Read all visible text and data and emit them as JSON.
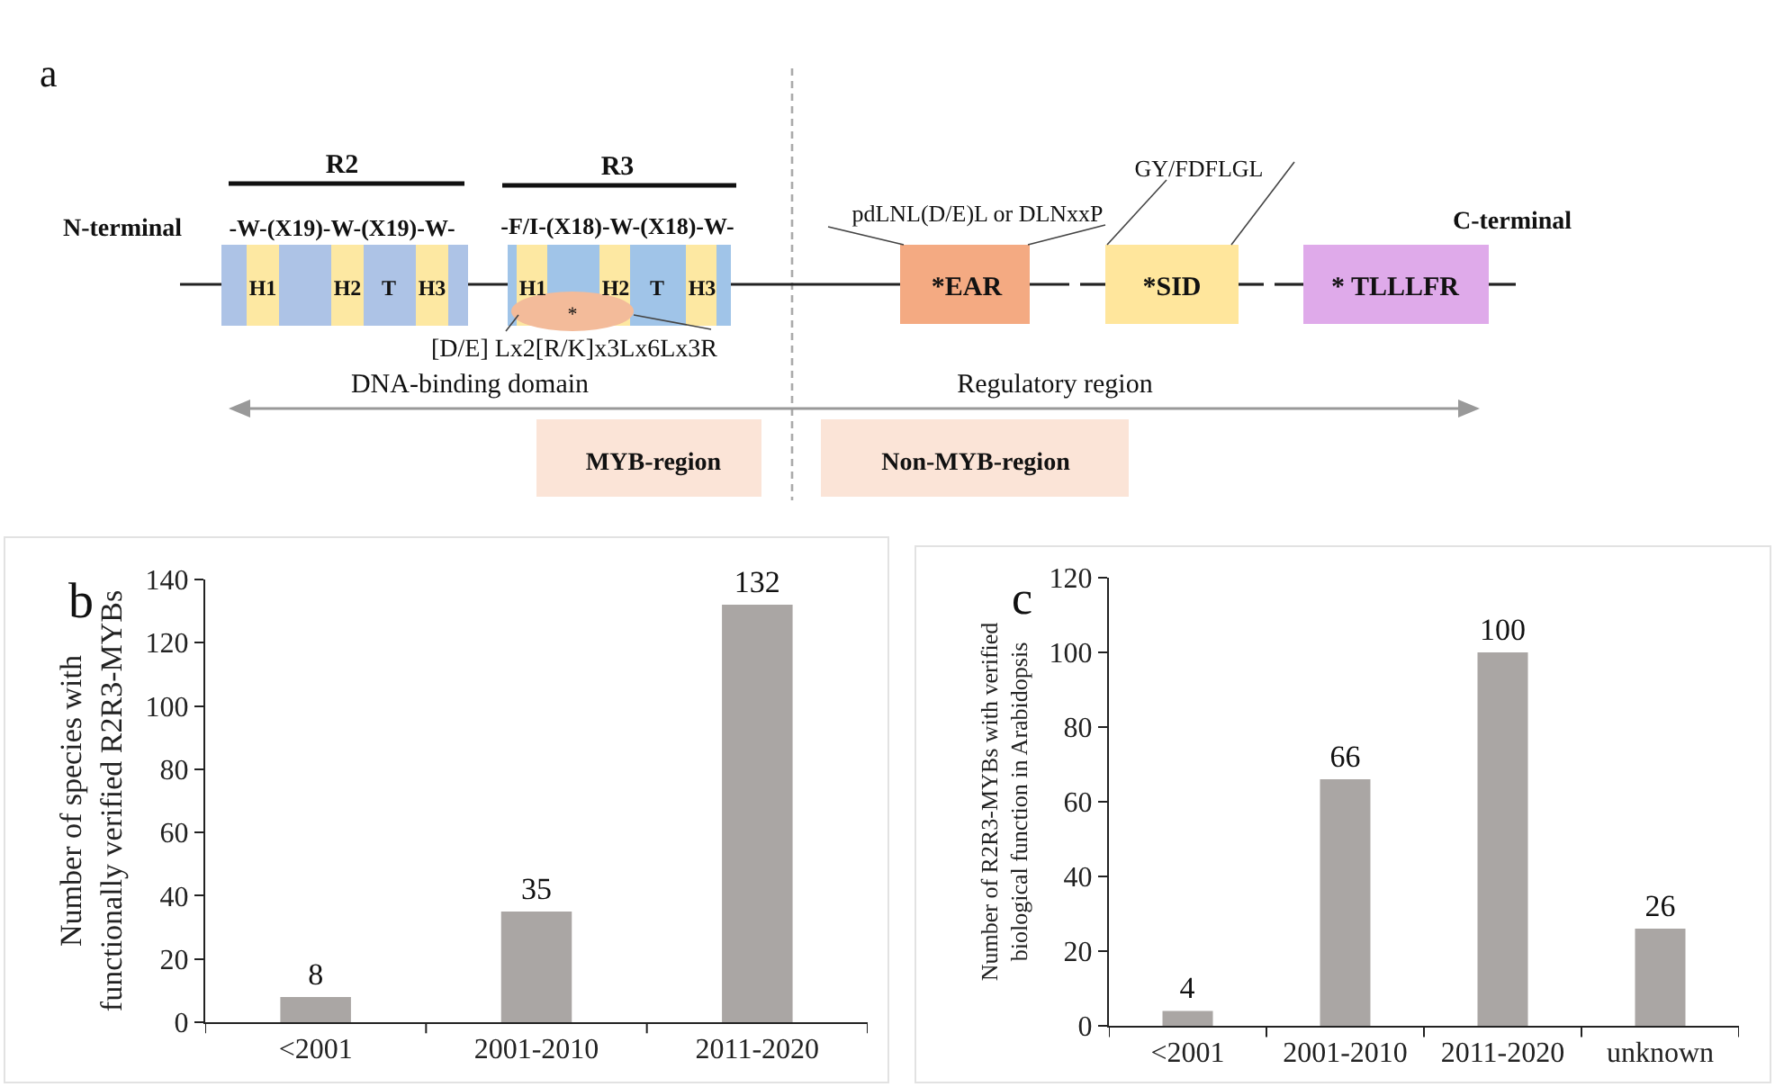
{
  "chart_data": [
    {
      "type": "other",
      "annotations": [
        "a",
        "R2",
        "R3",
        "N-terminal",
        "C-terminal",
        "-W-(X19)-W-(X19)-W-",
        "-F/I-(X18)-W-(X18)-W-",
        "H1",
        "H2",
        "T",
        "H3",
        "H1",
        "H2",
        "T",
        "H3",
        "*",
        "[D/E] Lx2[R/K]x3Lx6Lx3R",
        "DNA-binding domain",
        "Regulatory region",
        "MYB-region",
        "Non-MYB-region",
        "pdLNL(D/E)L or DLNxxP",
        "GY/FDFLGL",
        "*EAR",
        "*SID",
        "* TLLLFR"
      ]
    },
    {
      "type": "bar",
      "annotations": [
        "b"
      ],
      "ylabel": "Number of species with functionally verified R2R3-MYBs",
      "categories": [
        "<2001",
        "2001-2010",
        "2011-2020"
      ],
      "values": [
        8,
        35,
        132
      ],
      "color": "#aaa6a4",
      "ylim": [
        0,
        140
      ],
      "yticks": [
        0,
        20,
        40,
        60,
        80,
        100,
        120,
        140
      ],
      "grid": false,
      "data_labels": true
    },
    {
      "type": "bar",
      "annotations": [
        "c"
      ],
      "ylabel": "Number of R2R3-MYBs with verified biological function in Arabidopsis",
      "categories": [
        "<2001",
        "2001-2010",
        "2011-2020",
        "unknown"
      ],
      "values": [
        4,
        66,
        100,
        26
      ],
      "color": "#aaa6a4",
      "ylim": [
        0,
        120
      ],
      "yticks": [
        0,
        20,
        40,
        60,
        80,
        100,
        120
      ],
      "grid": false,
      "data_labels": true
    }
  ]
}
